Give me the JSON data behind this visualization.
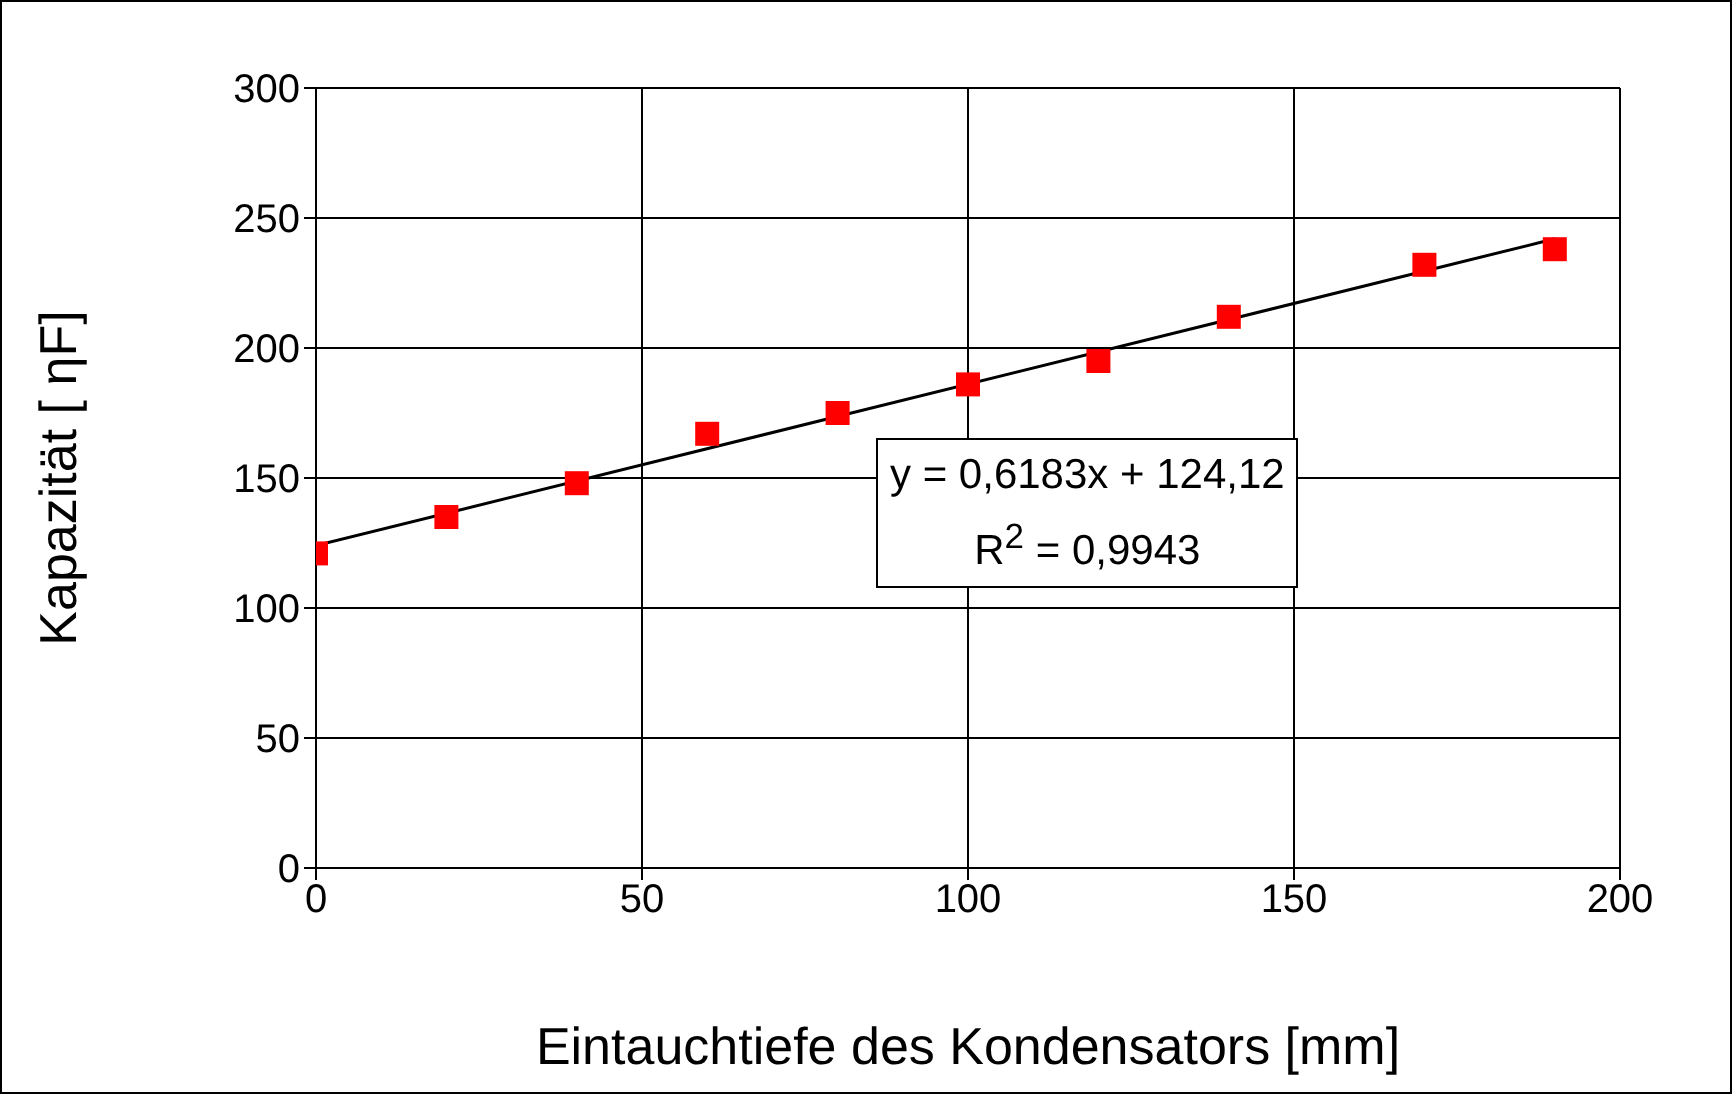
{
  "chart_data": {
    "type": "scatter",
    "xlabel": "Eintauchtiefe des Kondensators [mm]",
    "ylabel": "Kapazität [ ηF]",
    "x": [
      0,
      20,
      40,
      60,
      80,
      100,
      120,
      140,
      170,
      190
    ],
    "series": [
      {
        "type": "scatter",
        "color": "#ff0000",
        "marker": "square",
        "values": [
          121,
          135,
          148,
          167,
          175,
          186,
          195,
          212,
          232,
          238
        ]
      },
      {
        "type": "line",
        "color": "#000000",
        "x": [
          0,
          190
        ],
        "values": [
          124,
          242
        ]
      }
    ],
    "xlim": [
      0,
      200
    ],
    "xticks": [
      0,
      50,
      100,
      150,
      200
    ],
    "ylim": [
      0,
      300
    ],
    "yticks": [
      0,
      50,
      100,
      150,
      200,
      250,
      300
    ],
    "grid": true,
    "annotations": [
      "y = 0,6183x + 124,12",
      "R$^{2}$ = 0,9943"
    ]
  }
}
